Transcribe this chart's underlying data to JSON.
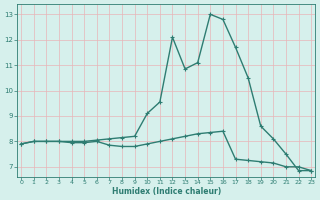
{
  "x": [
    0,
    1,
    2,
    3,
    4,
    5,
    6,
    7,
    8,
    9,
    10,
    11,
    12,
    13,
    14,
    15,
    16,
    17,
    18,
    19,
    20,
    21,
    22,
    23
  ],
  "y_upper": [
    7.9,
    8.0,
    8.0,
    8.0,
    8.0,
    8.0,
    8.05,
    8.1,
    8.15,
    8.2,
    9.1,
    9.55,
    12.1,
    10.85,
    11.1,
    13.0,
    12.8,
    11.7,
    10.5,
    8.6,
    8.1,
    7.5,
    6.85,
    6.85
  ],
  "y_lower": [
    7.9,
    8.0,
    8.0,
    8.0,
    7.95,
    7.95,
    8.0,
    7.85,
    7.8,
    7.8,
    7.9,
    8.0,
    8.1,
    8.2,
    8.3,
    8.35,
    8.4,
    7.3,
    7.25,
    7.2,
    7.15,
    7.0,
    7.0,
    6.85
  ],
  "xlim": [
    -0.3,
    23.3
  ],
  "ylim": [
    6.6,
    13.4
  ],
  "yticks": [
    7,
    8,
    9,
    10,
    11,
    12,
    13
  ],
  "xticks": [
    0,
    1,
    2,
    3,
    4,
    5,
    6,
    7,
    8,
    9,
    10,
    11,
    12,
    13,
    14,
    15,
    16,
    17,
    18,
    19,
    20,
    21,
    22,
    23
  ],
  "xlabel": "Humidex (Indice chaleur)",
  "line_color": "#2e7d72",
  "bg_color": "#d6f0ec",
  "grid_color": "#e8b4b8",
  "text_color": "#2e7d72",
  "markersize": 3.5,
  "linewidth": 1.0
}
